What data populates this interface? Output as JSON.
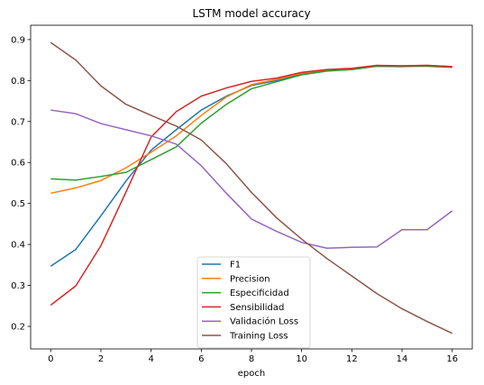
{
  "chart_data": {
    "type": "line",
    "title": "LSTM model accuracy",
    "xlabel": "epoch",
    "ylabel": "",
    "xlim": [
      -0.8,
      16.8
    ],
    "ylim": [
      0.145,
      0.935
    ],
    "xticks": [
      0,
      2,
      4,
      6,
      8,
      10,
      12,
      14,
      16
    ],
    "yticks": [
      0.2,
      0.3,
      0.4,
      0.5,
      0.6,
      0.7,
      0.8,
      0.9
    ],
    "grid": false,
    "legend_position": "bottom-center",
    "x": [
      0,
      1,
      2,
      3,
      4,
      5,
      6,
      7,
      8,
      9,
      10,
      11,
      12,
      13,
      14,
      15,
      16
    ],
    "series": [
      {
        "name": "F1",
        "color": "#1f77b4",
        "values": [
          0.347,
          0.388,
          0.47,
          0.555,
          0.63,
          0.68,
          0.728,
          0.762,
          0.788,
          0.8,
          0.815,
          0.824,
          0.827,
          0.835,
          0.834,
          0.836,
          0.833
        ]
      },
      {
        "name": "Precision",
        "color": "#ff7f0e",
        "values": [
          0.525,
          0.538,
          0.556,
          0.587,
          0.625,
          0.665,
          0.715,
          0.76,
          0.79,
          0.803,
          0.818,
          0.826,
          0.829,
          0.836,
          0.836,
          0.837,
          0.834
        ]
      },
      {
        "name": "Especificidad",
        "color": "#2ca02c",
        "values": [
          0.56,
          0.557,
          0.566,
          0.576,
          0.607,
          0.638,
          0.696,
          0.742,
          0.78,
          0.797,
          0.814,
          0.823,
          0.827,
          0.835,
          0.835,
          0.835,
          0.832
        ]
      },
      {
        "name": "Sensibilidad",
        "color": "#d62728",
        "values": [
          0.252,
          0.299,
          0.397,
          0.528,
          0.662,
          0.724,
          0.762,
          0.782,
          0.798,
          0.806,
          0.82,
          0.827,
          0.83,
          0.837,
          0.836,
          0.837,
          0.834
        ]
      },
      {
        "name": "Validación Loss",
        "color": "#9467bd",
        "values": [
          0.728,
          0.719,
          0.695,
          0.68,
          0.665,
          0.645,
          0.592,
          0.525,
          0.462,
          0.432,
          0.405,
          0.391,
          0.393,
          0.394,
          0.436,
          0.436,
          0.482
        ]
      },
      {
        "name": "Training Loss",
        "color": "#8c564b",
        "values": [
          0.893,
          0.85,
          0.787,
          0.742,
          0.715,
          0.689,
          0.655,
          0.597,
          0.527,
          0.465,
          0.413,
          0.366,
          0.323,
          0.28,
          0.243,
          0.212,
          0.183
        ]
      }
    ]
  }
}
